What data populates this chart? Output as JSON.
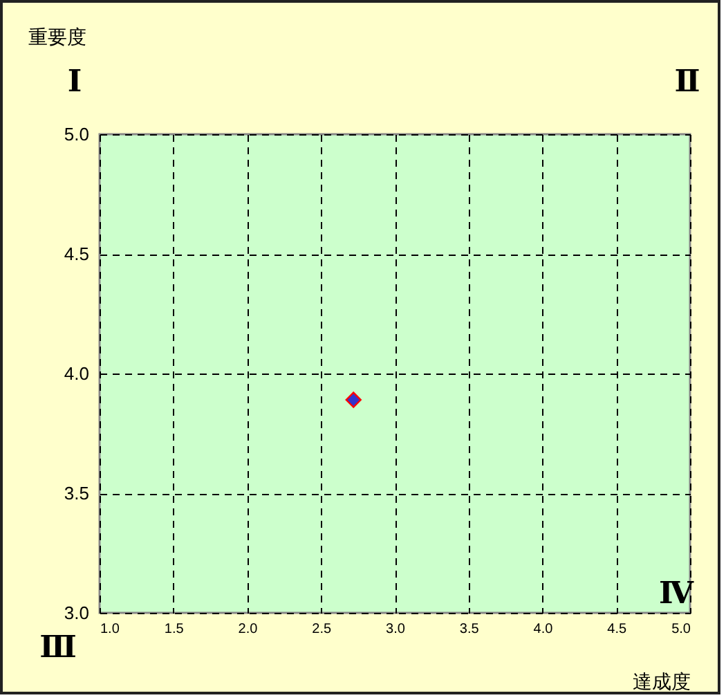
{
  "chart_data": {
    "type": "scatter",
    "xlabel": "達成度",
    "ylabel": "重要度",
    "x": [
      2.72
    ],
    "series": [
      {
        "color": "#3333cc",
        "values": [
          3.89
        ]
      }
    ],
    "xlim": [
      1.0,
      5.0
    ],
    "ylim": [
      3.0,
      5.0
    ],
    "xticks": [
      {
        "value": 1,
        "label": "1.0"
      },
      {
        "value": 1.5,
        "label": "1.5"
      },
      {
        "value": 2,
        "label": "2.0"
      },
      {
        "value": 2.5,
        "label": "2.5"
      },
      {
        "value": 3,
        "label": "3.0"
      },
      {
        "value": 3.5,
        "label": "3.5"
      },
      {
        "value": 4,
        "label": "4.0"
      },
      {
        "value": 4.5,
        "label": "4.5"
      },
      {
        "value": 5,
        "label": "5.0"
      }
    ],
    "yticks": [
      {
        "value": 3,
        "label": "3.0"
      },
      {
        "value": 3.5,
        "label": "3.5"
      },
      {
        "value": 4,
        "label": "4.0"
      },
      {
        "value": 4.5,
        "label": "4.5"
      },
      {
        "value": 5,
        "label": "5.0"
      }
    ],
    "annotations": [
      "Ⅰ",
      "Ⅱ",
      "Ⅲ",
      "Ⅳ"
    ],
    "grid": true,
    "marker": "diamond"
  }
}
